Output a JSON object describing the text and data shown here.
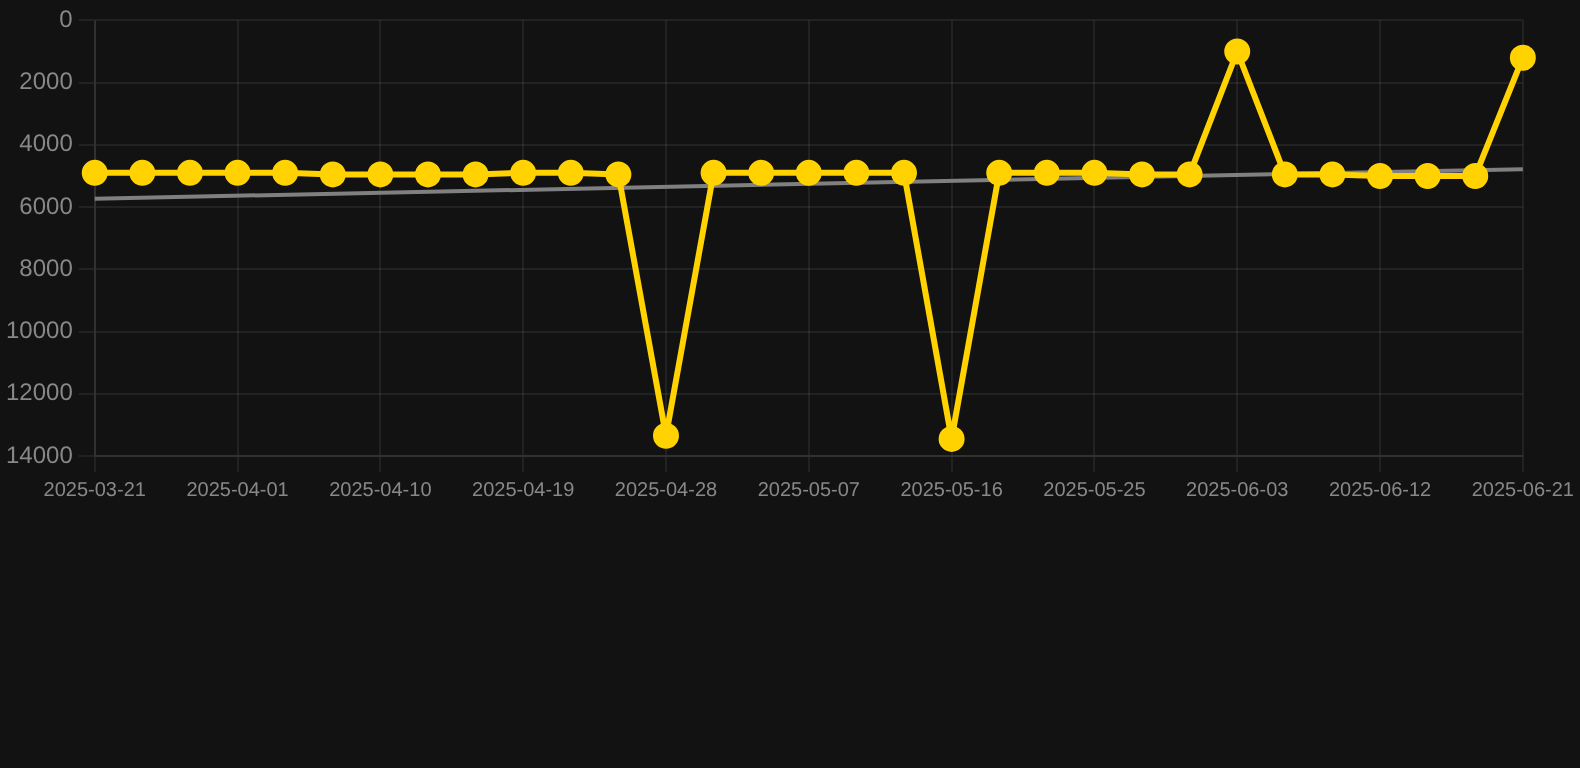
{
  "chart_data": {
    "type": "line",
    "categories": [
      "2025-03-21",
      null,
      null,
      "2025-04-01",
      null,
      null,
      "2025-04-10",
      null,
      null,
      "2025-04-19",
      null,
      null,
      "2025-04-28",
      null,
      null,
      "2025-05-07",
      null,
      null,
      "2025-05-16",
      null,
      null,
      "2025-05-25",
      null,
      null,
      "2025-06-03",
      null,
      null,
      "2025-06-12",
      null,
      null,
      "2025-06-21"
    ],
    "series": [
      {
        "color": "#ffd200",
        "marker": "circle",
        "values": [
          4900,
          4900,
          4900,
          4900,
          4900,
          4950,
          4950,
          4950,
          4950,
          4900,
          4900,
          4950,
          13350,
          4900,
          4900,
          4900,
          4900,
          4900,
          13450,
          4900,
          4900,
          4900,
          4950,
          4950,
          1000,
          4950,
          4950,
          5000,
          5000,
          5000,
          1200
        ]
      },
      {
        "type": "line",
        "color": "#808080",
        "marker": "none",
        "values": [
          5730,
          null,
          null,
          null,
          null,
          null,
          null,
          null,
          null,
          null,
          null,
          null,
          null,
          null,
          null,
          null,
          null,
          null,
          null,
          null,
          null,
          null,
          null,
          null,
          null,
          null,
          null,
          null,
          null,
          null,
          4780
        ]
      }
    ],
    "ylim": [
      14000,
      0
    ],
    "yticks": [
      0,
      2000,
      4000,
      6000,
      8000,
      10000,
      12000,
      14000
    ],
    "grid": true,
    "legend": false
  }
}
